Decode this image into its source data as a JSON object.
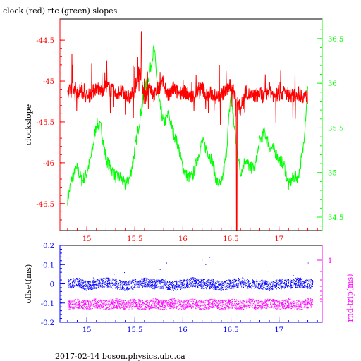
{
  "page": {
    "title": "clock (red) rtc (green) slopes",
    "footer": "2017-02-14 boson.physics.ubc.ca"
  },
  "chart_data": [
    {
      "type": "line",
      "title": "clock (red) rtc (green) slopes",
      "xlabel": "",
      "ylabel": "clockslope",
      "xlim": [
        14.72,
        17.45
      ],
      "ylim": [
        -46.83,
        -44.24
      ],
      "y2lim": [
        34.35,
        36.72
      ],
      "x_ticks": [
        15,
        15.5,
        16,
        16.5,
        17
      ],
      "y_ticks": [
        -44.5,
        -45,
        -45.5,
        -46,
        -46.5
      ],
      "y2_ticks": [
        36.5,
        36,
        35.5,
        35,
        34.5
      ],
      "x_tick_labels": [
        "15",
        "15.5",
        "16",
        "16.5",
        "17"
      ],
      "y_tick_labels": [
        "-44.5",
        "-45",
        "-45.5",
        "-46",
        "-46.5"
      ],
      "y2_tick_labels": [
        "36.5",
        "36",
        "35.5",
        "35",
        "34.5"
      ],
      "colors": {
        "axis": "#ff0000",
        "axis2": "#00ff00",
        "frame": "#000000"
      },
      "series": [
        {
          "axis": "left",
          "color": "#ff0000",
          "x": [
            14.8,
            14.85,
            14.9,
            14.95,
            15.0,
            15.05,
            15.1,
            15.15,
            15.2,
            15.25,
            15.3,
            15.35,
            15.4,
            15.45,
            15.5,
            15.55,
            15.6,
            15.65,
            15.7,
            15.75,
            15.8,
            15.85,
            15.9,
            15.95,
            16.0,
            16.05,
            16.1,
            16.15,
            16.2,
            16.25,
            16.3,
            16.35,
            16.4,
            16.45,
            16.5,
            16.55,
            16.6,
            16.65,
            16.7,
            16.75,
            16.8,
            16.85,
            16.9,
            16.95,
            17.0,
            17.05,
            17.1,
            17.15,
            17.2,
            17.25,
            17.3
          ],
          "y": [
            -45.18,
            -45.05,
            -45.12,
            -45.1,
            -45.2,
            -45.15,
            -45.08,
            -45.12,
            -45.06,
            -45.1,
            -45.16,
            -45.12,
            -45.18,
            -45.2,
            -45.1,
            -44.85,
            -45.25,
            -45.05,
            -45.18,
            -45.08,
            -45.02,
            -45.2,
            -45.08,
            -45.15,
            -45.12,
            -45.16,
            -45.2,
            -45.14,
            -45.08,
            -45.18,
            -45.15,
            -45.2,
            -45.16,
            -45.12,
            -45.05,
            -45.2,
            -45.35,
            -45.12,
            -45.18,
            -45.18,
            -45.15,
            -45.2,
            -45.1,
            -45.18,
            -45.16,
            -45.14,
            -45.16,
            -45.18,
            -45.15,
            -45.18,
            -45.2
          ]
        },
        {
          "axis": "right",
          "color": "#00ff00",
          "x": [
            14.8,
            14.85,
            14.9,
            14.95,
            15.0,
            15.05,
            15.1,
            15.15,
            15.2,
            15.25,
            15.3,
            15.35,
            15.4,
            15.45,
            15.5,
            15.55,
            15.6,
            15.65,
            15.7,
            15.75,
            15.8,
            15.85,
            15.9,
            15.95,
            16.0,
            16.05,
            16.1,
            16.15,
            16.2,
            16.25,
            16.3,
            16.35,
            16.4,
            16.45,
            16.5,
            16.55,
            16.6,
            16.65,
            16.7,
            16.75,
            16.8,
            16.85,
            16.9,
            16.95,
            17.0,
            17.05,
            17.1,
            17.15,
            17.2,
            17.25,
            17.3
          ],
          "y": [
            34.7,
            34.95,
            35.05,
            34.9,
            35.0,
            35.2,
            35.55,
            35.5,
            35.15,
            35.05,
            34.95,
            34.95,
            34.85,
            34.95,
            35.25,
            35.6,
            35.9,
            36.1,
            36.4,
            35.8,
            35.55,
            35.65,
            35.45,
            35.3,
            35.05,
            34.95,
            34.95,
            35.15,
            35.35,
            35.25,
            35.15,
            34.9,
            34.85,
            35.2,
            35.9,
            35.35,
            35.0,
            35.15,
            35.05,
            35.05,
            35.35,
            35.45,
            35.3,
            35.25,
            35.15,
            35.1,
            34.85,
            34.95,
            34.95,
            35.25,
            35.95
          ]
        }
      ]
    },
    {
      "type": "scatter",
      "xlabel": "",
      "ylabel": "offset(ms)",
      "y2label": "rnd-trip(ms)",
      "xlim": [
        14.72,
        17.45
      ],
      "ylim": [
        -0.2,
        0.2
      ],
      "y2_scale": "log",
      "x_ticks": [
        15,
        15.5,
        16,
        16.5,
        17
      ],
      "y_ticks": [
        0.2,
        0.1,
        0,
        -0.1,
        -0.2
      ],
      "y2_ticks": [
        1
      ],
      "x_tick_labels": [
        "15",
        "15.5",
        "16",
        "16.5",
        "17"
      ],
      "y_tick_labels": [
        "0.2",
        "0.1",
        "0",
        "-0.1",
        "-0.2"
      ],
      "y2_tick_labels": [
        "1"
      ],
      "colors": {
        "axis": "#0000ff",
        "axis2": "#ff00ff",
        "frame": "#000000"
      },
      "series": [
        {
          "axis": "left",
          "color": "#0000ff",
          "x": [
            14.8,
            14.9,
            15.0,
            15.1,
            15.2,
            15.3,
            15.4,
            15.5,
            15.6,
            15.7,
            15.8,
            15.9,
            16.0,
            16.1,
            16.2,
            16.3,
            16.4,
            16.5,
            16.6,
            16.7,
            16.8,
            16.9,
            17.0,
            17.1,
            17.2,
            17.3
          ],
          "y": [
            0.0,
            0.01,
            -0.01,
            0.0,
            0.01,
            0.0,
            -0.01,
            0.0,
            0.01,
            0.0,
            0.0,
            -0.01,
            0.0,
            0.01,
            0.0,
            0.0,
            -0.01,
            0.0,
            0.01,
            0.0,
            0.0,
            -0.01,
            0.0,
            0.0,
            0.01,
            0.0
          ]
        },
        {
          "axis": "left",
          "color": "#ff00ff",
          "x": [
            14.8,
            14.9,
            15.0,
            15.1,
            15.2,
            15.3,
            15.4,
            15.5,
            15.6,
            15.7,
            15.8,
            15.9,
            16.0,
            16.1,
            16.2,
            16.3,
            16.4,
            16.5,
            16.6,
            16.7,
            16.8,
            16.9,
            17.0,
            17.1,
            17.2,
            17.3
          ],
          "y": [
            -0.11,
            -0.1,
            -0.11,
            -0.1,
            -0.11,
            -0.1,
            -0.11,
            -0.1,
            -0.11,
            -0.1,
            -0.11,
            -0.1,
            -0.11,
            -0.1,
            -0.11,
            -0.1,
            -0.11,
            -0.1,
            -0.11,
            -0.1,
            -0.11,
            -0.1,
            -0.11,
            -0.1,
            -0.11,
            -0.1
          ]
        }
      ]
    }
  ]
}
